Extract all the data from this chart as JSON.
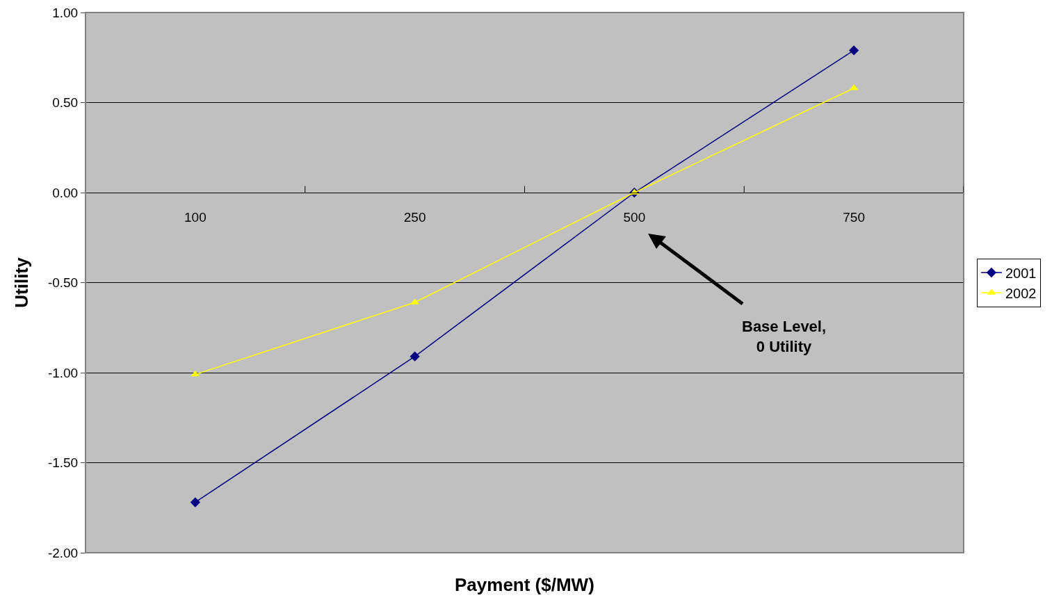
{
  "chart_data": {
    "type": "line",
    "xlabel": "Payment ($/MW)",
    "ylabel": "Utility",
    "categories": [
      "100",
      "250",
      "500",
      "750"
    ],
    "series": [
      {
        "name": "2001",
        "color": "#000080",
        "marker": "diamond",
        "values": [
          -1.72,
          -0.91,
          0.0,
          0.79
        ]
      },
      {
        "name": "2002",
        "color": "#ffff00",
        "marker": "triangle",
        "values": [
          -1.01,
          -0.61,
          0.0,
          0.58
        ]
      }
    ],
    "ylim": [
      -2,
      1
    ],
    "yticks": [
      {
        "value": -2,
        "label": "-2.00"
      },
      {
        "value": -1.5,
        "label": "-1.50"
      },
      {
        "value": -1,
        "label": "-1.00"
      },
      {
        "value": -0.5,
        "label": "-0.50"
      },
      {
        "value": 0,
        "label": "0.00"
      },
      {
        "value": 0.5,
        "label": "0.50"
      },
      {
        "value": 1,
        "label": "1.00"
      }
    ],
    "grid": "y",
    "legend": "right",
    "line_style": "solid",
    "annotations": [
      "Base Level,\n0 Utility"
    ]
  }
}
